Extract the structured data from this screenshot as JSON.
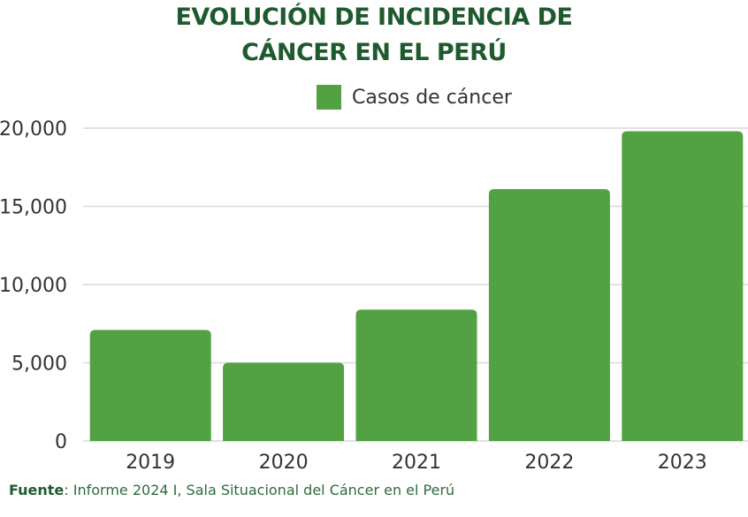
{
  "colors": {
    "bar": "#52a142",
    "title": "#1f5a2e",
    "grid": "#d9d9d9"
  },
  "chart_data": {
    "type": "bar",
    "title": "EVOLUCIÓN DE INCIDENCIA DE CÁNCER EN EL PERÚ",
    "title_lines": [
      "EVOLUCIÓN DE INCIDENCIA DE",
      "CÁNCER EN EL PERÚ"
    ],
    "categories": [
      "2019",
      "2020",
      "2021",
      "2022",
      "2023"
    ],
    "series": [
      {
        "name": "Casos de cáncer",
        "values": [
          7100,
          5000,
          8400,
          16100,
          19800
        ]
      }
    ],
    "ylim": [
      0,
      20000
    ],
    "yticks": [
      0,
      5000,
      10000,
      15000,
      20000
    ],
    "ytick_labels": [
      "0",
      "5,000",
      "10,000",
      "15,000",
      "20,000"
    ],
    "grid": true,
    "legend": "top-center"
  },
  "footer": {
    "label": "Fuente",
    "text": ": Informe 2024 I, Sala Situacional del Cáncer en el Perú"
  }
}
